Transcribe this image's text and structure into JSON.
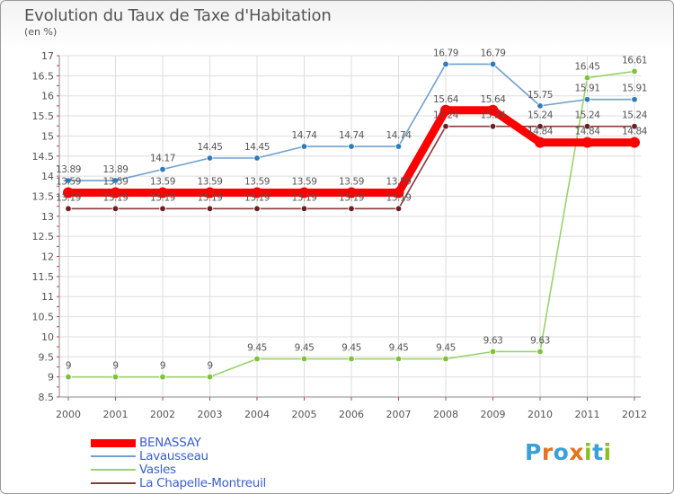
{
  "header": {
    "title": "Evolution du Taux de Taxe d'Habitation",
    "subtitle": "(en %)"
  },
  "logo": {
    "letters": [
      "P",
      "r",
      "o",
      "x",
      "i",
      "t",
      "i"
    ],
    "colors": [
      "#3aa0d8",
      "#e8731c",
      "#3aa0d8",
      "#e8731c",
      "#8cbf26",
      "#3aa0d8",
      "#8cbf26"
    ]
  },
  "chart_data": {
    "type": "line",
    "x": [
      "2000",
      "2001",
      "2002",
      "2003",
      "2004",
      "2005",
      "2006",
      "2007",
      "2008",
      "2009",
      "2010",
      "2011",
      "2012"
    ],
    "ylim": [
      8.5,
      17
    ],
    "yticks": [
      "8.5",
      "9",
      "9.5",
      "10",
      "10.5",
      "11",
      "11.5",
      "12",
      "12.5",
      "13",
      "13.5",
      "14",
      "14.5",
      "15",
      "15.5",
      "16",
      "16.5",
      "17"
    ],
    "grid": true,
    "legend_position": "bottom-left",
    "series": [
      {
        "name": "BENASSAY",
        "color": "#ff0000",
        "values": [
          13.59,
          13.59,
          13.59,
          13.59,
          13.59,
          13.59,
          13.59,
          13.59,
          15.64,
          15.64,
          14.84,
          14.84,
          14.84
        ],
        "labels": [
          "13.59",
          "13.59",
          "13.59",
          "13.59",
          "13.59",
          "13.59",
          "13.59",
          "13.59",
          "15.64",
          "15.64",
          "14.84",
          "14.84",
          "14.84"
        ]
      },
      {
        "name": "Lavausseau",
        "color": "#6fa0cf",
        "marker": "#2c7bbf",
        "values": [
          13.89,
          13.89,
          14.17,
          14.45,
          14.45,
          14.74,
          14.74,
          14.74,
          16.79,
          16.79,
          15.75,
          15.91,
          15.91
        ],
        "labels": [
          "13.89",
          "13.89",
          "14.17",
          "14.45",
          "14.45",
          "14.74",
          "14.74",
          "14.74",
          "16.79",
          "16.79",
          "15.75",
          "15.91",
          "15.91"
        ]
      },
      {
        "name": "Vasles",
        "color": "#9ad36a",
        "marker": "#7cc23a",
        "values": [
          9,
          9,
          9,
          9,
          9.45,
          9.45,
          9.45,
          9.45,
          9.45,
          9.63,
          9.63,
          16.45,
          16.61
        ],
        "labels": [
          "9",
          "9",
          "9",
          "9",
          "9.45",
          "9.45",
          "9.45",
          "9.45",
          "9.45",
          "9.63",
          "9.63",
          "16.45",
          "16.61"
        ]
      },
      {
        "name": "La Chapelle-Montreuil",
        "color": "#8b3a3a",
        "marker": "#6b1f1f",
        "values": [
          13.19,
          13.19,
          13.19,
          13.19,
          13.19,
          13.19,
          13.19,
          13.19,
          15.24,
          15.24,
          15.24,
          15.24,
          15.24
        ],
        "labels": [
          "13.19",
          "13.19",
          "13.19",
          "13.19",
          "13.19",
          "13.19",
          "13.19",
          "13.19",
          "15.24",
          "15.24",
          "15.24",
          "15.24",
          "15.24"
        ]
      }
    ]
  }
}
